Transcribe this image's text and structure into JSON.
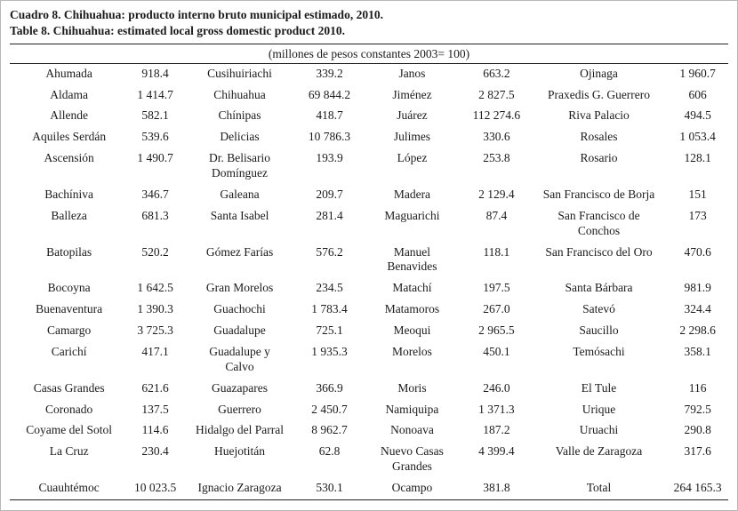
{
  "page": {
    "title_es": "Cuadro 8. Chihuahua: producto interno bruto municipal estimado, 2010.",
    "title_en": "Table 8. Chihuahua: estimated local gross domestic product 2010.",
    "units_header": "(millones de pesos constantes 2003= 100)"
  },
  "table": {
    "rows": [
      [
        "Ahumada",
        "918.4",
        "Cusihuiriachi",
        "339.2",
        "Janos",
        "663.2",
        "Ojinaga",
        "1 960.7"
      ],
      [
        "Aldama",
        "1 414.7",
        "Chihuahua",
        "69 844.2",
        "Jiménez",
        "2 827.5",
        "Praxedis G. Guerrero",
        "606"
      ],
      [
        "Allende",
        "582.1",
        "Chínipas",
        "418.7",
        "Juárez",
        "112 274.6",
        "Riva Palacio",
        "494.5"
      ],
      [
        "Aquiles Serdán",
        "539.6",
        "Delicias",
        "10 786.3",
        "Julimes",
        "330.6",
        "Rosales",
        "1 053.4"
      ],
      [
        "Ascensión",
        "1 490.7",
        "Dr. Belisario\nDomínguez",
        "193.9",
        "López",
        "253.8",
        "Rosario",
        "128.1"
      ],
      [
        "Bachíniva",
        "346.7",
        "Galeana",
        "209.7",
        "Madera",
        "2 129.4",
        "San Francisco de Borja",
        "151"
      ],
      [
        "Balleza",
        "681.3",
        "Santa Isabel",
        "281.4",
        "Maguarichi",
        "87.4",
        "San Francisco de\nConchos",
        "173"
      ],
      [
        "Batopilas",
        "520.2",
        "Gómez Farías",
        "576.2",
        "Manuel\nBenavides",
        "118.1",
        "San Francisco del Oro",
        "470.6"
      ],
      [
        "Bocoyna",
        "1 642.5",
        "Gran Morelos",
        "234.5",
        "Matachí",
        "197.5",
        "Santa Bárbara",
        "981.9"
      ],
      [
        "Buenaventura",
        "1 390.3",
        "Guachochi",
        "1 783.4",
        "Matamoros",
        "267.0",
        "Satevó",
        "324.4"
      ],
      [
        "Camargo",
        "3 725.3",
        "Guadalupe",
        "725.1",
        "Meoqui",
        "2 965.5",
        "Saucillo",
        "2 298.6"
      ],
      [
        "Carichí",
        "417.1",
        "Guadalupe y\nCalvo",
        "1 935.3",
        "Morelos",
        "450.1",
        "Temósachi",
        "358.1"
      ],
      [
        "Casas Grandes",
        "621.6",
        "Guazapares",
        "366.9",
        "Moris",
        "246.0",
        "El Tule",
        "116"
      ],
      [
        "Coronado",
        "137.5",
        "Guerrero",
        "2 450.7",
        "Namiquipa",
        "1 371.3",
        "Urique",
        "792.5"
      ],
      [
        "Coyame del Sotol",
        "114.6",
        "Hidalgo del Parral",
        "8 962.7",
        "Nonoava",
        "187.2",
        "Uruachi",
        "290.8"
      ],
      [
        "La Cruz",
        "230.4",
        "Huejotitán",
        "62.8",
        "Nuevo Casas\nGrandes",
        "4 399.4",
        "Valle de Zaragoza",
        "317.6"
      ],
      [
        "Cuauhtémoc",
        "10 023.5",
        "Ignacio Zaragoza",
        "530.1",
        "Ocampo",
        "381.8",
        "Total",
        "264 165.3"
      ]
    ]
  }
}
